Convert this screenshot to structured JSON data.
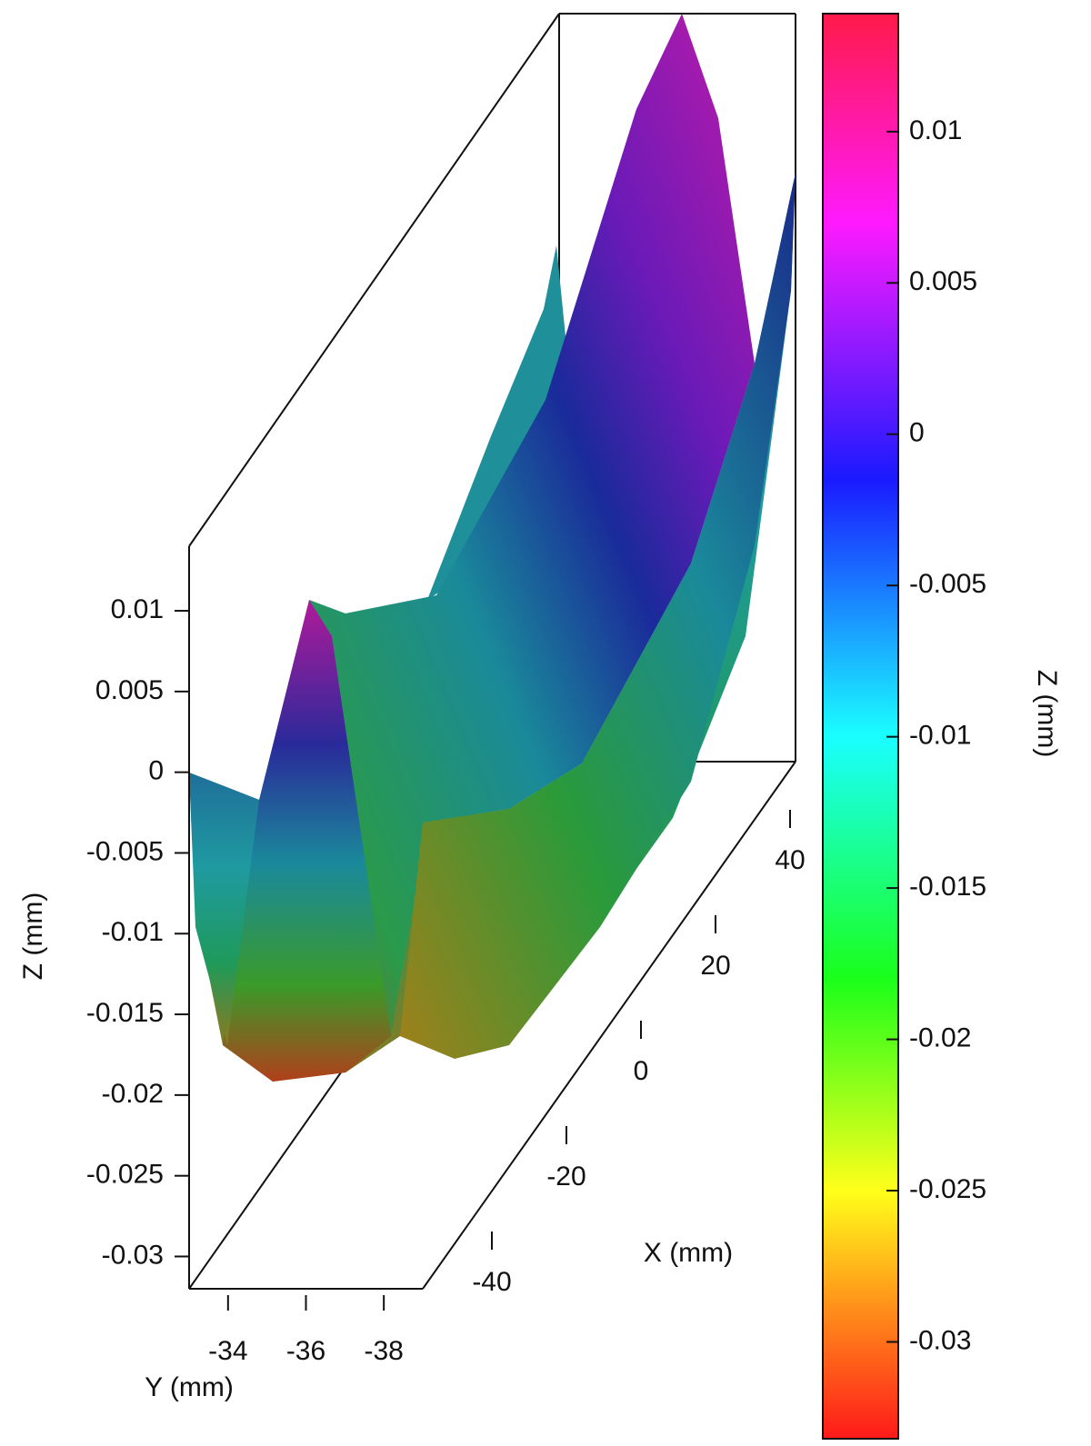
{
  "chart_data": {
    "type": "surface3d",
    "xlabel": "X (mm)",
    "ylabel": "Y (mm)",
    "zlabel": "Z (mm)",
    "colorbar_label": "Z (mm)",
    "xlim": [
      -50,
      50
    ],
    "xticks": [
      -40,
      -20,
      0,
      20,
      40
    ],
    "ylim": [
      -33,
      -39
    ],
    "yticks": [
      -34,
      -36,
      -38
    ],
    "zlim": [
      -0.032,
      0.014
    ],
    "zticks": [
      0.01,
      0.005,
      0,
      -0.005,
      -0.01,
      -0.015,
      -0.02,
      -0.025,
      -0.03
    ],
    "colorbar_lim": [
      -0.0332,
      0.0139
    ],
    "colorbar_ticks": [
      0.01,
      0.005,
      0,
      -0.005,
      -0.01,
      -0.015,
      -0.02,
      -0.025,
      -0.03
    ],
    "colormap": [
      {
        "value": -0.0332,
        "color": "#ff1a1a"
      },
      {
        "value": -0.029,
        "color": "#ff8c1a"
      },
      {
        "value": -0.025,
        "color": "#ffff1a"
      },
      {
        "value": -0.018,
        "color": "#1aff1a"
      },
      {
        "value": -0.01,
        "color": "#1affff"
      },
      {
        "value": -0.0015,
        "color": "#1a1aff"
      },
      {
        "value": 0.007,
        "color": "#ff1aff"
      },
      {
        "value": 0.0139,
        "color": "#ff1a4a"
      }
    ]
  }
}
